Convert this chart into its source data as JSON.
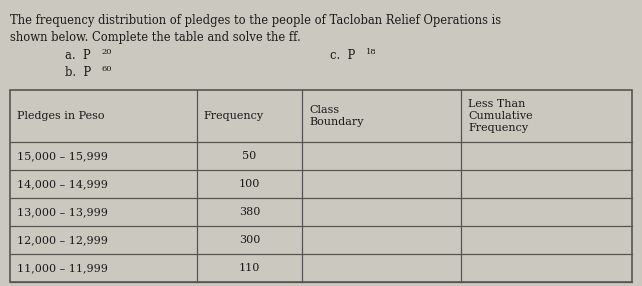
{
  "title_line1": "The frequency distribution of pledges to the people of Tacloban Relief Operations is",
  "title_line2": "shown below. Complete the table and solve the ff.",
  "a_label": "a.  P",
  "a_sub": "20",
  "b_label": "b.  P",
  "b_sub": "60",
  "c_label": "c.  P",
  "c_sub": "18",
  "col_headers": [
    "Pledges in Peso",
    "Frequency",
    "Class\nBoundary",
    "Less Than\nCumulative\nFrequency"
  ],
  "col_header_align": [
    "left",
    "left",
    "left",
    "left"
  ],
  "rows": [
    [
      "15,000 – 15,999",
      "50",
      "",
      ""
    ],
    [
      "14,000 – 14,999",
      "100",
      "",
      ""
    ],
    [
      "13,000 – 13,999",
      "380",
      "",
      ""
    ],
    [
      "12,000 – 12,999",
      "300",
      "",
      ""
    ],
    [
      "11,000 – 11,999",
      "110",
      "",
      ""
    ]
  ],
  "bg_color": "#cbc8c0",
  "text_color": "#1a1a1a",
  "border_color": "#555555",
  "font_size_title": 8.3,
  "font_size_label": 8.3,
  "font_size_table": 8.0,
  "font_size_sub": 6.0
}
